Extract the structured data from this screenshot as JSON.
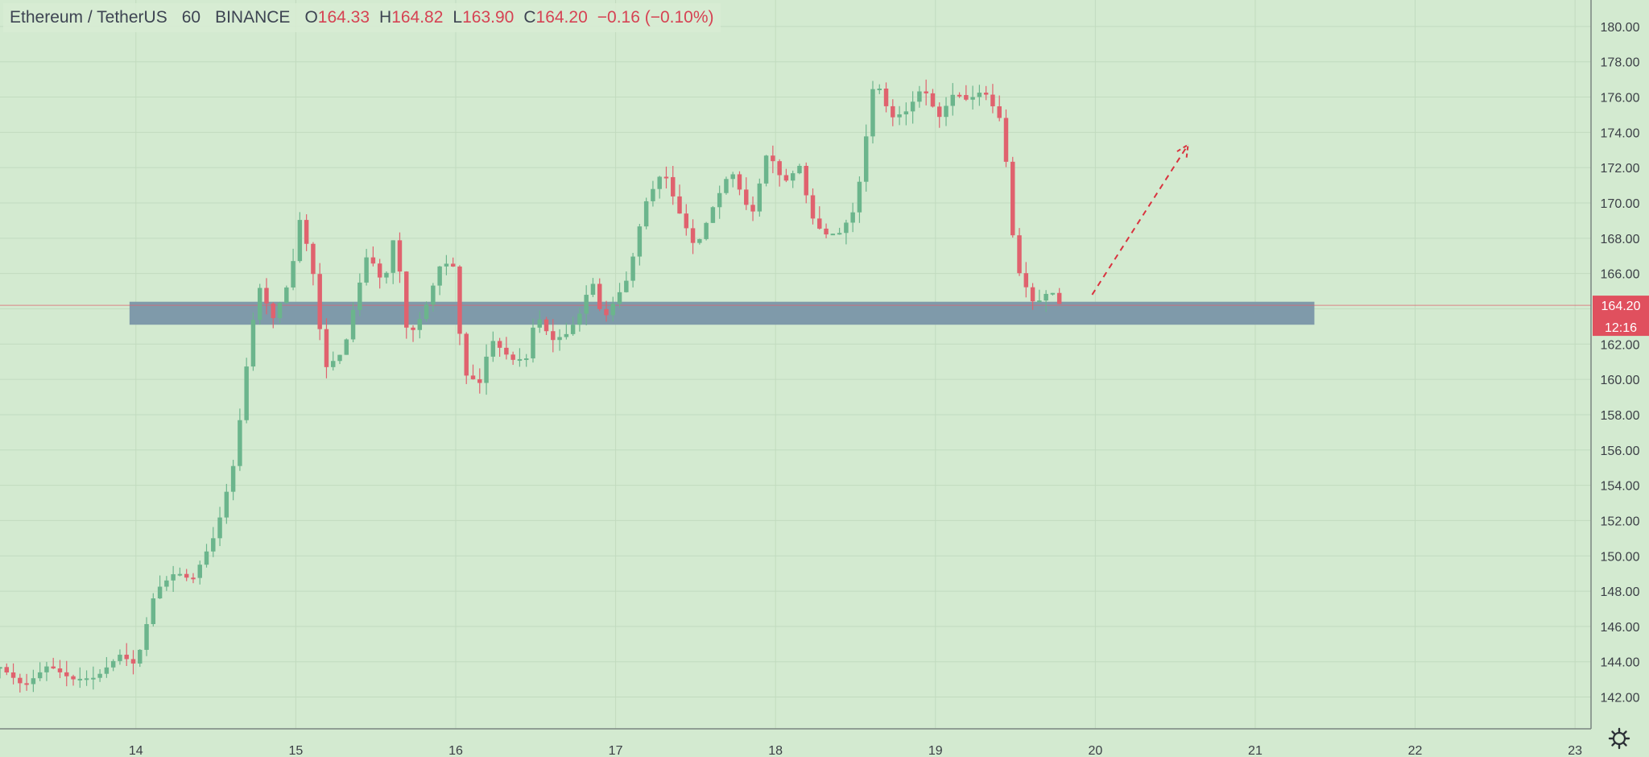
{
  "header": {
    "symbol": "Ethereum / TetherUS",
    "interval": "60",
    "exchange": "BINANCE",
    "open_label": "O",
    "open": "164.33",
    "high_label": "H",
    "high": "164.82",
    "low_label": "L",
    "low": "163.90",
    "close_label": "C",
    "close": "164.20",
    "change": "−0.16 (−0.10%)"
  },
  "price_tag": {
    "price": "164.20",
    "countdown": "12:16"
  },
  "colors": {
    "up": "#6bb58c",
    "down": "#e0626e",
    "background": "#d3ead0",
    "zone": "#7f9aaa",
    "price_line": "#e0626e",
    "projection": "#d9333f"
  },
  "icons": {
    "settings": "gear-icon"
  },
  "chart_data": {
    "type": "candlestick",
    "x_ticks": [
      "14",
      "15",
      "16",
      "17",
      "18",
      "19",
      "20",
      "21",
      "22",
      "23"
    ],
    "y_ticks": [
      "142.00",
      "144.00",
      "146.00",
      "148.00",
      "150.00",
      "152.00",
      "154.00",
      "156.00",
      "158.00",
      "160.00",
      "162.00",
      "164.00",
      "166.00",
      "168.00",
      "170.00",
      "172.00",
      "174.00",
      "176.00",
      "178.00",
      "180.00"
    ],
    "ylim": [
      140.2,
      181.5
    ],
    "xlim": [
      13.15,
      23.1
    ],
    "grid": true,
    "support_zone": {
      "low": 163.1,
      "high": 164.4,
      "x_start": 13.96,
      "x_end": 21.37
    },
    "current_price_line": 164.2,
    "projection_arrow": {
      "from": [
        19.98,
        164.8
      ],
      "to": [
        20.58,
        173.3
      ],
      "style": "dashed"
    },
    "keypoints": [
      [
        13.15,
        143.7
      ],
      [
        13.3,
        142.6
      ],
      [
        13.45,
        143.8
      ],
      [
        13.6,
        143
      ],
      [
        13.75,
        143.1
      ],
      [
        13.9,
        144.4
      ],
      [
        14.0,
        143.8
      ],
      [
        14.12,
        148
      ],
      [
        14.25,
        149.1
      ],
      [
        14.35,
        148.6
      ],
      [
        14.5,
        151.3
      ],
      [
        14.62,
        155.5
      ],
      [
        14.72,
        162.8
      ],
      [
        14.78,
        165.4
      ],
      [
        14.85,
        163.3
      ],
      [
        14.97,
        165.8
      ],
      [
        15.02,
        169.2
      ],
      [
        15.1,
        166.6
      ],
      [
        15.18,
        160.6
      ],
      [
        15.3,
        161.6
      ],
      [
        15.38,
        164.8
      ],
      [
        15.45,
        167.2
      ],
      [
        15.55,
        165.3
      ],
      [
        15.62,
        168.4
      ],
      [
        15.7,
        162.3
      ],
      [
        15.8,
        163.8
      ],
      [
        15.9,
        166.4
      ],
      [
        15.98,
        166.7
      ],
      [
        16.05,
        160.3
      ],
      [
        16.15,
        159.8
      ],
      [
        16.22,
        162.3
      ],
      [
        16.35,
        161.1
      ],
      [
        16.45,
        161.2
      ],
      [
        16.5,
        163.8
      ],
      [
        16.6,
        162.2
      ],
      [
        16.7,
        162.6
      ],
      [
        16.78,
        163.8
      ],
      [
        16.85,
        165.7
      ],
      [
        16.92,
        163.3
      ],
      [
        17.08,
        165.8
      ],
      [
        17.18,
        169.9
      ],
      [
        17.3,
        171.9
      ],
      [
        17.38,
        169.8
      ],
      [
        17.5,
        167.4
      ],
      [
        17.6,
        169.6
      ],
      [
        17.72,
        171.9
      ],
      [
        17.85,
        169.2
      ],
      [
        17.95,
        173
      ],
      [
        18.05,
        171.1
      ],
      [
        18.15,
        172.1
      ],
      [
        18.22,
        169.3
      ],
      [
        18.3,
        168.2
      ],
      [
        18.4,
        168.3
      ],
      [
        18.5,
        169.7
      ],
      [
        18.55,
        172.7
      ],
      [
        18.62,
        177.2
      ],
      [
        18.72,
        174.8
      ],
      [
        18.82,
        175.2
      ],
      [
        18.92,
        176.6
      ],
      [
        19.02,
        174.8
      ],
      [
        19.12,
        176.3
      ],
      [
        19.2,
        175.8
      ],
      [
        19.3,
        176.4
      ],
      [
        19.42,
        174.5
      ],
      [
        19.5,
        166.5
      ],
      [
        19.62,
        164.2
      ],
      [
        19.72,
        165.1
      ],
      [
        19.78,
        164.2
      ]
    ]
  }
}
